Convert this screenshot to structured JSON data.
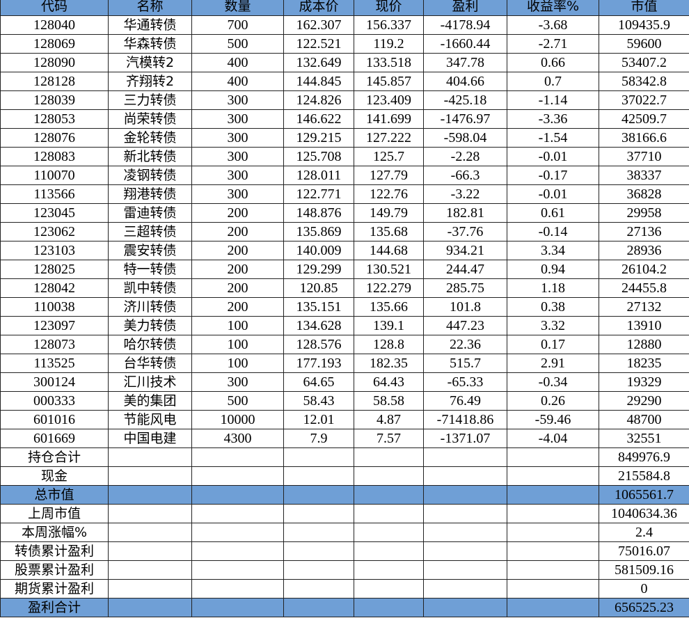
{
  "table": {
    "header": [
      "代码",
      "名称",
      "数量",
      "成本价",
      "现价",
      "盈利",
      "收益率%",
      "市值"
    ],
    "rows": [
      [
        "128040",
        "华通转债",
        700,
        162.307,
        156.337,
        -4178.94,
        -3.68,
        109435.9
      ],
      [
        "128069",
        "华森转债",
        500,
        122.521,
        119.2,
        -1660.44,
        -2.71,
        59600
      ],
      [
        "128090",
        "汽模转2",
        400,
        132.649,
        133.518,
        347.78,
        0.66,
        53407.2
      ],
      [
        "128128",
        "齐翔转2",
        400,
        144.845,
        145.857,
        404.66,
        0.7,
        58342.8
      ],
      [
        "128039",
        "三力转债",
        300,
        124.826,
        123.409,
        -425.18,
        -1.14,
        37022.7
      ],
      [
        "128053",
        "尚荣转债",
        300,
        146.622,
        141.699,
        -1476.97,
        -3.36,
        42509.7
      ],
      [
        "128076",
        "金轮转债",
        300,
        129.215,
        127.222,
        -598.04,
        -1.54,
        38166.6
      ],
      [
        "128083",
        "新北转债",
        300,
        125.708,
        125.7,
        -2.28,
        -0.01,
        37710
      ],
      [
        "110070",
        "凌钢转债",
        300,
        128.011,
        127.79,
        -66.3,
        -0.17,
        38337
      ],
      [
        "113566",
        "翔港转债",
        300,
        122.771,
        122.76,
        -3.22,
        -0.01,
        36828
      ],
      [
        "123045",
        "雷迪转债",
        200,
        148.876,
        149.79,
        182.81,
        0.61,
        29958
      ],
      [
        "123062",
        "三超转债",
        200,
        135.869,
        135.68,
        -37.76,
        -0.14,
        27136
      ],
      [
        "123103",
        "震安转债",
        200,
        140.009,
        144.68,
        934.21,
        3.34,
        28936
      ],
      [
        "128025",
        "特一转债",
        200,
        129.299,
        130.521,
        244.47,
        0.94,
        26104.2
      ],
      [
        "128042",
        "凯中转债",
        200,
        120.85,
        122.279,
        285.75,
        1.18,
        24455.8
      ],
      [
        "110038",
        "济川转债",
        200,
        135.151,
        135.66,
        101.8,
        0.38,
        27132
      ],
      [
        "123097",
        "美力转债",
        100,
        134.628,
        139.1,
        447.23,
        3.32,
        13910
      ],
      [
        "128073",
        "哈尔转债",
        100,
        128.576,
        128.8,
        22.36,
        0.17,
        12880
      ],
      [
        "113525",
        "台华转债",
        100,
        177.193,
        182.35,
        515.7,
        2.91,
        18235
      ],
      [
        "300124",
        "汇川技术",
        300,
        64.65,
        64.43,
        -65.33,
        -0.34,
        19329
      ],
      [
        "000333",
        "美的集团",
        500,
        58.43,
        58.58,
        76.49,
        0.26,
        29290
      ],
      [
        "601016",
        "节能风电",
        10000,
        12.01,
        4.87,
        -71418.86,
        -59.46,
        48700
      ],
      [
        "601669",
        "中国电建",
        4300,
        7.9,
        7.57,
        -1371.07,
        -4.04,
        32551
      ]
    ],
    "summary": [
      {
        "label": "持仓合计",
        "value": 849976.9
      },
      {
        "label": "现金",
        "value": 215584.8
      },
      {
        "label": "总市值",
        "value": 1065561.7,
        "highlight": true
      },
      {
        "label": "上周市值",
        "value": 1040634.36
      },
      {
        "label": "本周涨幅%",
        "value": 2.4
      },
      {
        "label": "转债累计盈利",
        "value": 75016.07
      },
      {
        "label": "股票累计盈利",
        "value": 581509.16
      },
      {
        "label": "期货累计盈利",
        "value": 0
      },
      {
        "label": "盈利合计",
        "value": 656525.23,
        "highlight": true
      }
    ]
  }
}
